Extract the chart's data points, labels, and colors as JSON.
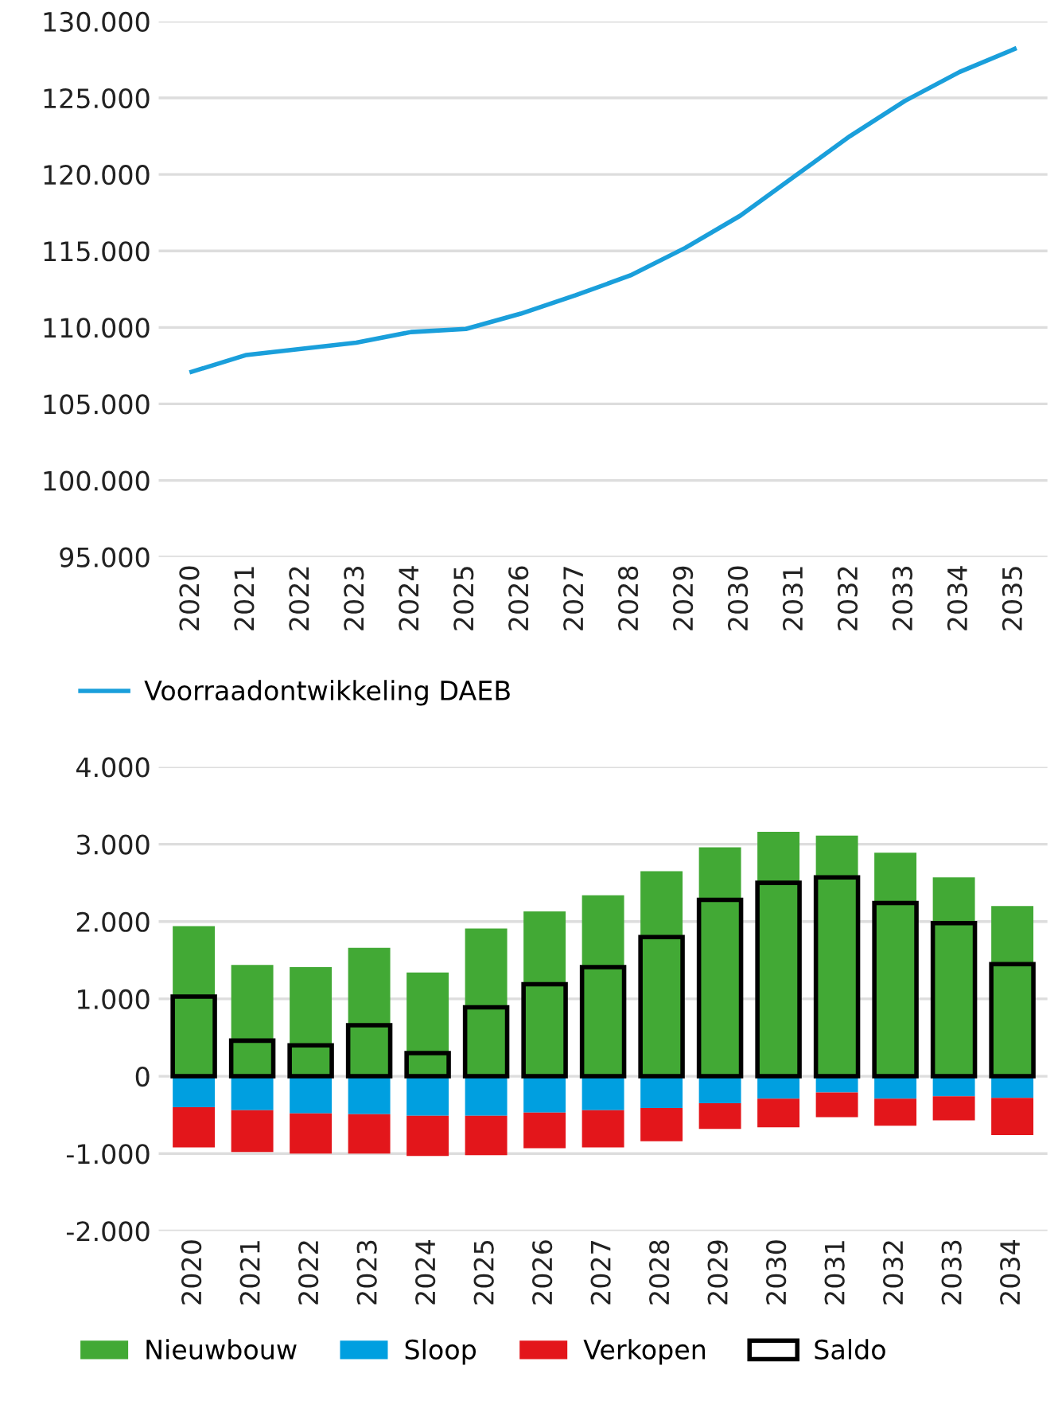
{
  "chart_data": [
    {
      "type": "line",
      "categories": [
        "2020",
        "2021",
        "2022",
        "2023",
        "2024",
        "2025",
        "2026",
        "2027",
        "2028",
        "2029",
        "2030",
        "2031",
        "2032",
        "2033",
        "2034",
        "2035"
      ],
      "series": [
        {
          "name": "Voorraadontwikkeling DAEB",
          "color": "#1a9fdb",
          "values": [
            107100,
            108200,
            108600,
            109000,
            109700,
            109900,
            110900,
            112100,
            113400,
            115200,
            117300,
            119900,
            122500,
            124800,
            126700,
            128200
          ]
        }
      ],
      "ylim": [
        95000,
        130000
      ],
      "yticks": [
        {
          "value": 95000,
          "label": "95.000"
        },
        {
          "value": 100000,
          "label": "100.000"
        },
        {
          "value": 105000,
          "label": "105.000"
        },
        {
          "value": 110000,
          "label": "110.000"
        },
        {
          "value": 115000,
          "label": "115.000"
        },
        {
          "value": 120000,
          "label": "120.000"
        },
        {
          "value": 125000,
          "label": "125.000"
        },
        {
          "value": 130000,
          "label": "130.000"
        }
      ],
      "grid": "y",
      "legend": "bottom",
      "marker": "none",
      "line_style": "solid"
    },
    {
      "type": "bar",
      "stacked": true,
      "categories": [
        "2020",
        "2021",
        "2022",
        "2023",
        "2024",
        "2025",
        "2026",
        "2027",
        "2028",
        "2029",
        "2030",
        "2031",
        "2032",
        "2033",
        "2034"
      ],
      "series": [
        {
          "name": "Nieuwbouw",
          "color": "#42a935",
          "values": [
            1940,
            1440,
            1410,
            1660,
            1340,
            1910,
            2130,
            2340,
            2650,
            2960,
            3160,
            3110,
            2890,
            2570,
            2200
          ]
        },
        {
          "name": "Sloop",
          "color": "#009fe0",
          "values": [
            -400,
            -440,
            -480,
            -490,
            -510,
            -510,
            -470,
            -440,
            -410,
            -350,
            -290,
            -210,
            -290,
            -260,
            -280
          ]
        },
        {
          "name": "Verkopen",
          "color": "#e3161b",
          "values": [
            -520,
            -540,
            -520,
            -510,
            -520,
            -510,
            -460,
            -480,
            -430,
            -330,
            -370,
            -320,
            -350,
            -310,
            -480
          ]
        }
      ],
      "ylim": [
        -2000,
        4000
      ],
      "yticks": [
        {
          "value": -2000,
          "label": "-2.000"
        },
        {
          "value": -1000,
          "label": "-1.000"
        },
        0,
        {
          "value": 1000,
          "label": "1.000"
        },
        {
          "value": 2000,
          "label": "2.000"
        },
        {
          "value": 3000,
          "label": "3.000"
        },
        {
          "value": 4000,
          "label": "4.000"
        }
      ],
      "grid": "y",
      "legend": "bottom",
      "tick_labels": "y"
    },
    {
      "type": "bar",
      "categories": [
        "2020",
        "2021",
        "2022",
        "2023",
        "2024",
        "2025",
        "2026",
        "2027",
        "2028",
        "2029",
        "2030",
        "2031",
        "2032",
        "2033",
        "2034"
      ],
      "series": [
        {
          "name": "Saldo",
          "color": "#000000",
          "values": [
            1030,
            460,
            400,
            660,
            300,
            890,
            1190,
            1410,
            1800,
            2280,
            2500,
            2570,
            2240,
            1980,
            1450
          ]
        }
      ],
      "ylim": [
        -2000,
        4000
      ],
      "legend": "bottom",
      "tick_labels": "x"
    }
  ]
}
